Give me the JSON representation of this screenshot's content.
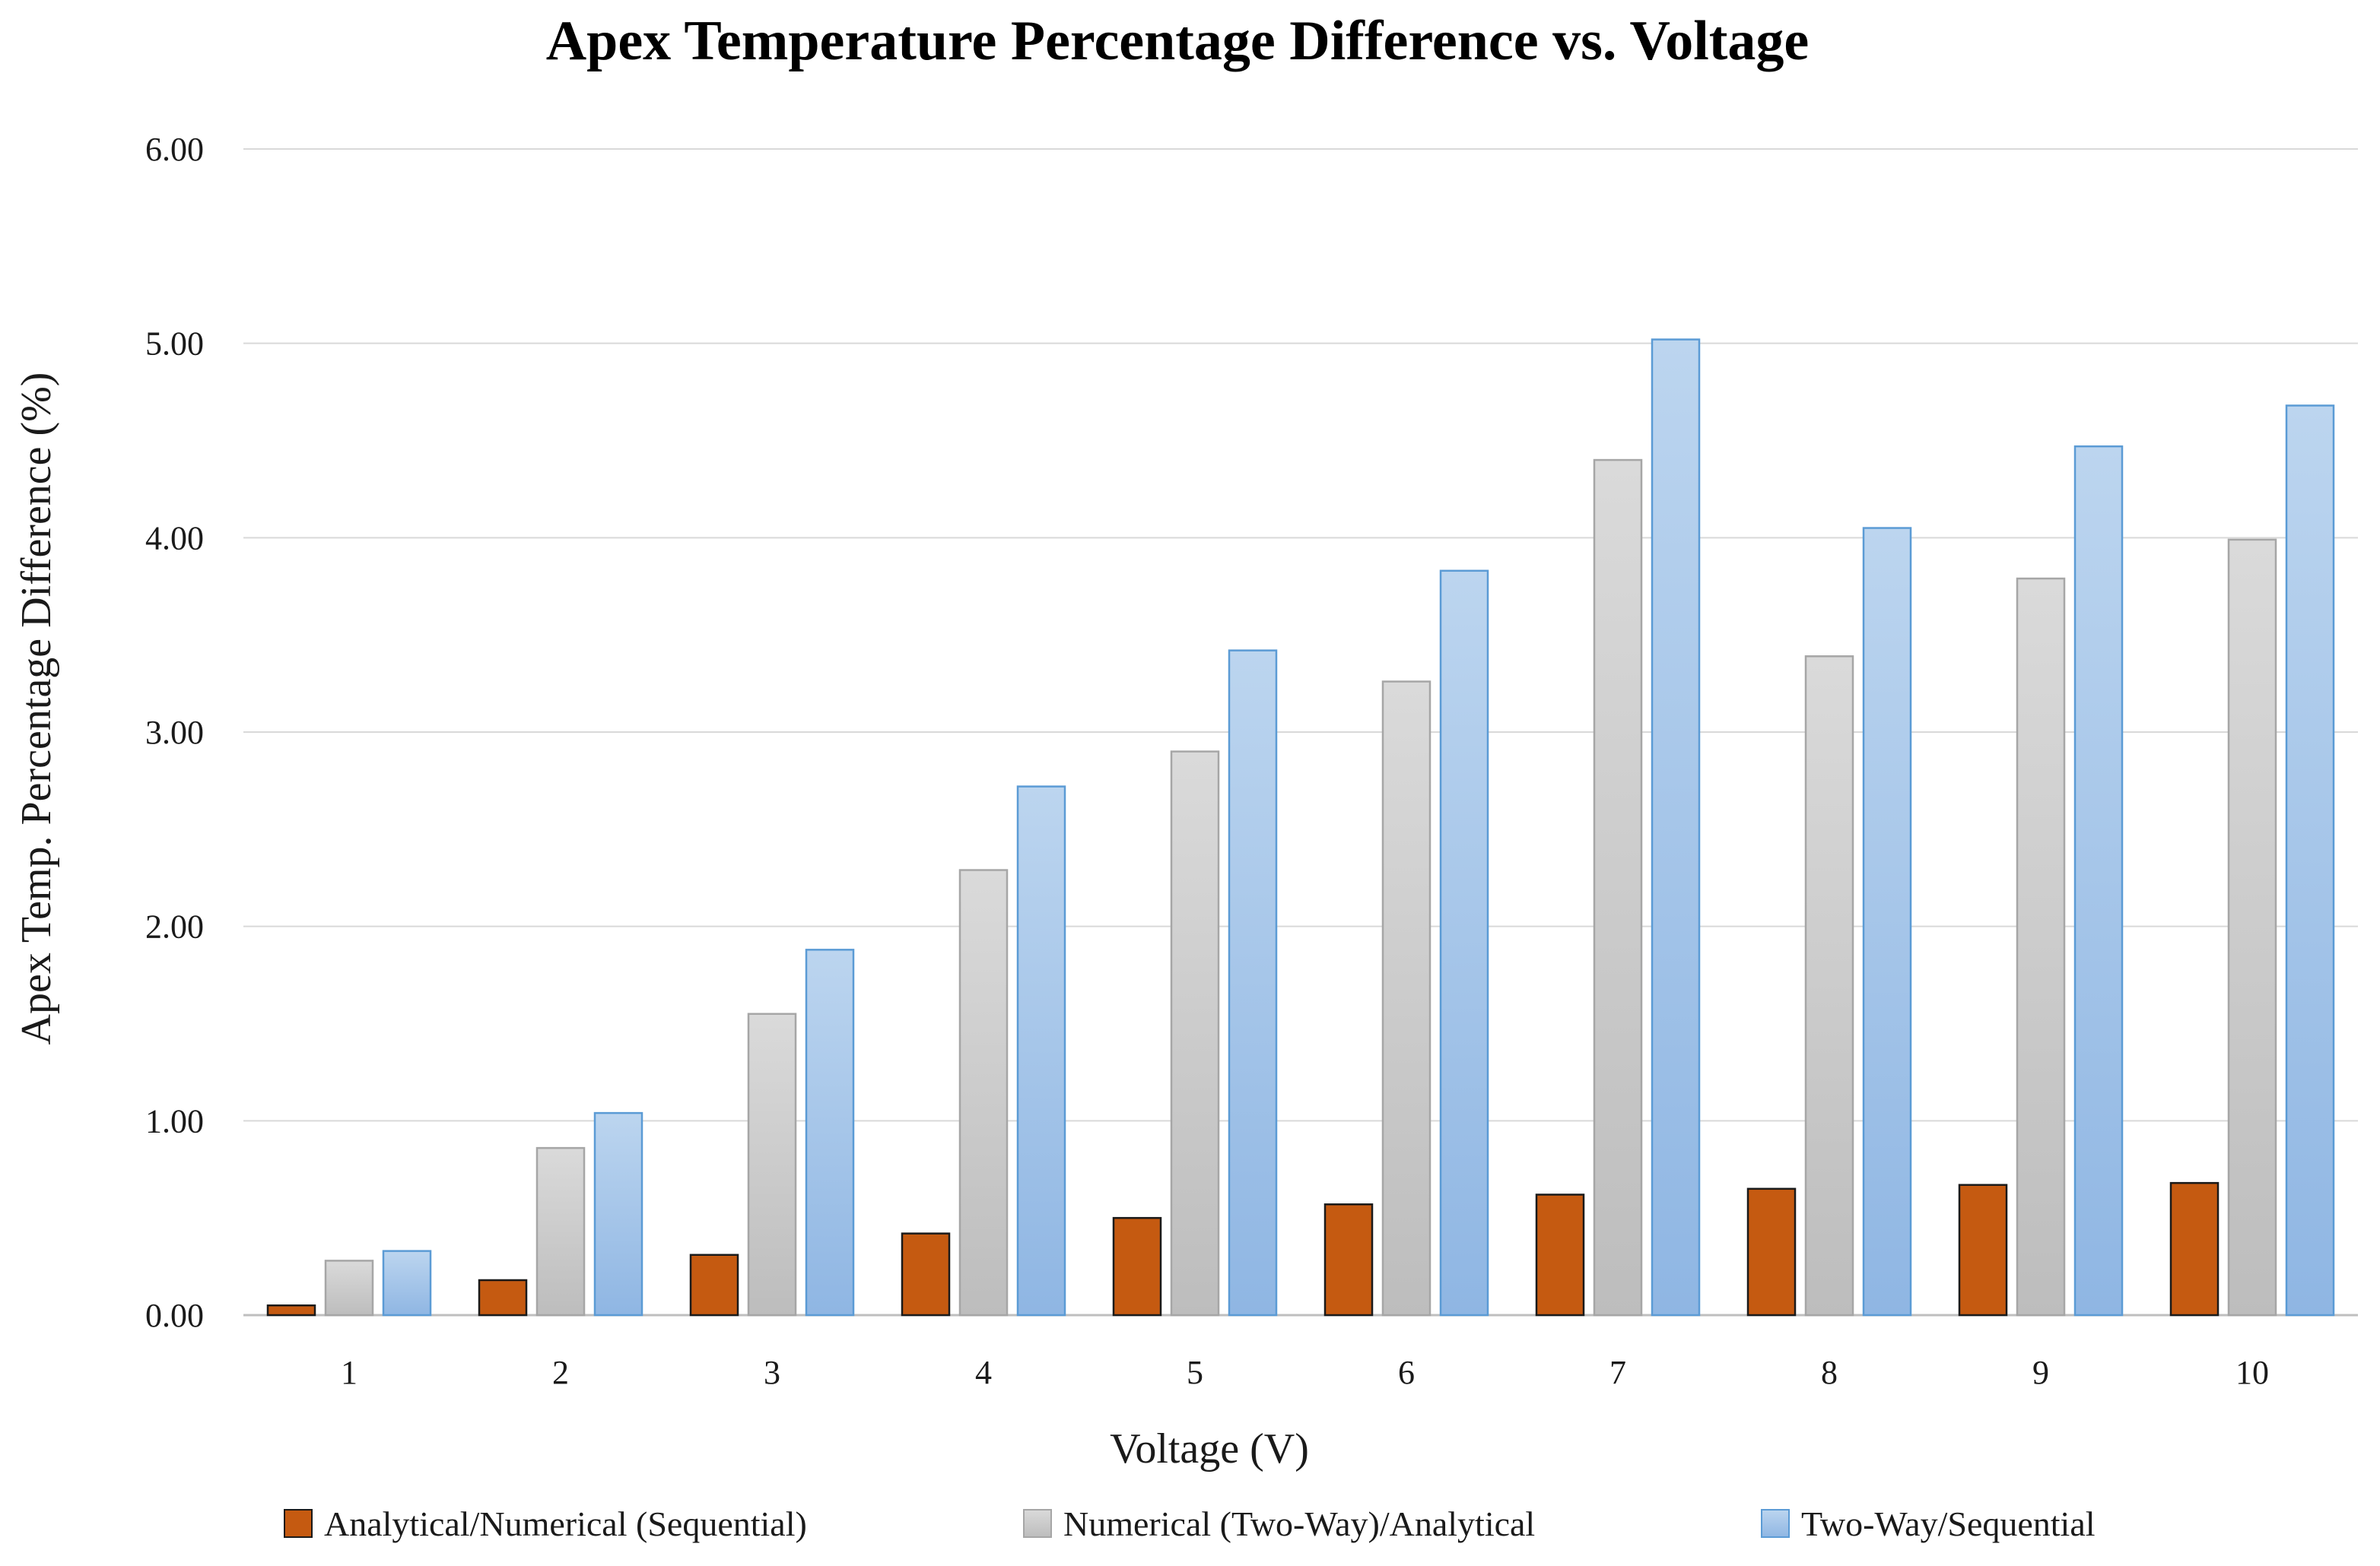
{
  "chart_data": {
    "type": "bar",
    "title": "Apex Temperature Percentage Difference vs. Voltage",
    "xlabel": "Voltage (V)",
    "ylabel": "Apex Temp. Percentage Difference (%)",
    "ylim": [
      0,
      6
    ],
    "yticks": [
      "0.00",
      "1.00",
      "2.00",
      "3.00",
      "4.00",
      "5.00",
      "6.00"
    ],
    "grid": true,
    "legend_position": "bottom",
    "categories": [
      "1",
      "2",
      "3",
      "4",
      "5",
      "6",
      "7",
      "8",
      "9",
      "10"
    ],
    "series": [
      {
        "name": "Analytical/Numerical (Sequential)",
        "color": "#c55a11",
        "values": [
          0.05,
          0.18,
          0.31,
          0.42,
          0.5,
          0.57,
          0.62,
          0.65,
          0.67,
          0.68
        ]
      },
      {
        "name": "Numerical (Two-Way)/Analytical",
        "color": "#c9c9c9",
        "values": [
          0.28,
          0.86,
          1.55,
          2.29,
          2.9,
          3.26,
          4.4,
          3.39,
          3.79,
          3.99
        ]
      },
      {
        "name": "Two-Way/Sequential",
        "color": "#a9c8ea",
        "values": [
          0.33,
          1.04,
          1.88,
          2.72,
          3.42,
          3.83,
          5.02,
          4.05,
          4.47,
          4.68
        ]
      }
    ]
  }
}
